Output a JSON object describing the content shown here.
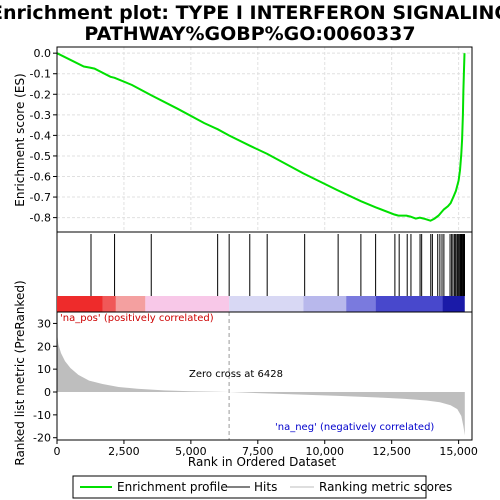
{
  "chart_data": {
    "type": "line",
    "title_line1": "Enrichment plot: TYPE I INTERFERON SIGNALING",
    "title_line2": "PATHWAY%GOBP%GO:0060337",
    "es_panel": {
      "ylabel": "Enrichment score (ES)",
      "ylim": [
        -0.87,
        0.03
      ],
      "yticks": [
        0.0,
        -0.1,
        -0.2,
        -0.3,
        -0.4,
        -0.5,
        -0.6,
        -0.7,
        -0.8
      ],
      "ytick_labels": [
        "0.0",
        "-0.1",
        "-0.2",
        "-0.3",
        "-0.4",
        "-0.5",
        "-0.6",
        "-0.7",
        "-0.8"
      ],
      "grid": true,
      "series": [
        {
          "name": "Enrichment profile",
          "color": "#00e000",
          "x": [
            0,
            1000,
            1230,
            1400,
            2000,
            2150,
            2800,
            3520,
            4500,
            5500,
            6000,
            6420,
            7200,
            7850,
            9200,
            10450,
            11350,
            11900,
            12600,
            12750,
            13050,
            13200,
            13400,
            13550,
            13700,
            13950,
            14100,
            14250,
            14350,
            14450,
            14600,
            14700,
            14800,
            14900,
            15000,
            15050,
            15100,
            15130,
            15160,
            15180,
            15200,
            15220
          ],
          "y": [
            0.0,
            -0.065,
            -0.07,
            -0.075,
            -0.115,
            -0.12,
            -0.155,
            -0.205,
            -0.27,
            -0.34,
            -0.37,
            -0.4,
            -0.45,
            -0.49,
            -0.585,
            -0.665,
            -0.72,
            -0.75,
            -0.785,
            -0.79,
            -0.79,
            -0.795,
            -0.805,
            -0.8,
            -0.805,
            -0.815,
            -0.805,
            -0.79,
            -0.775,
            -0.76,
            -0.745,
            -0.73,
            -0.7,
            -0.67,
            -0.62,
            -0.57,
            -0.49,
            -0.42,
            -0.3,
            -0.18,
            -0.08,
            0.0
          ]
        }
      ]
    },
    "hits_panel": {
      "hit_positions": [
        1270,
        2150,
        3520,
        6000,
        6430,
        7200,
        7850,
        9250,
        10500,
        11350,
        11900,
        12620,
        12780,
        13080,
        13220,
        13560,
        13620,
        13960,
        14020,
        14220,
        14300,
        14380,
        14450,
        14680,
        14740,
        14790,
        14850,
        14890,
        14940,
        14980,
        15020,
        15060,
        15090,
        15120,
        15150,
        15180,
        15200,
        15220
      ]
    },
    "colorbar": {
      "segments": [
        {
          "from": 0,
          "to": 1700,
          "color": "#ee2b2b"
        },
        {
          "from": 1700,
          "to": 2200,
          "color": "#f05858"
        },
        {
          "from": 2200,
          "to": 3300,
          "color": "#f4a0a0"
        },
        {
          "from": 3300,
          "to": 6428,
          "color": "#f8c8e8"
        },
        {
          "from": 6428,
          "to": 9200,
          "color": "#d8d8f4"
        },
        {
          "from": 9200,
          "to": 10800,
          "color": "#b8b8ec"
        },
        {
          "from": 10800,
          "to": 11900,
          "color": "#7a7ade"
        },
        {
          "from": 11900,
          "to": 14400,
          "color": "#4848cc"
        },
        {
          "from": 14400,
          "to": 15230,
          "color": "#1a1aa8"
        }
      ]
    },
    "rank_panel": {
      "ylabel": "Ranked list metric (PreRanked)",
      "ylim": [
        -21,
        35
      ],
      "yticks": [
        30,
        20,
        10,
        0,
        -10,
        -20
      ],
      "ytick_labels": [
        "30",
        "20",
        "10",
        "0",
        "-10",
        "-20"
      ],
      "fill_color": "#bebebe",
      "x": [
        0,
        50,
        150,
        300,
        500,
        800,
        1200,
        1700,
        2300,
        3000,
        4000,
        5000,
        6000,
        6428,
        7500,
        9000,
        10500,
        12000,
        13000,
        13800,
        14300,
        14700,
        14950,
        15100,
        15180,
        15230
      ],
      "y": [
        26,
        21,
        17,
        13.5,
        10.5,
        7.5,
        5,
        3.5,
        2.2,
        1.4,
        0.7,
        0.35,
        0.1,
        0,
        -0.5,
        -1.1,
        -1.7,
        -2.4,
        -3.0,
        -3.7,
        -4.5,
        -5.8,
        -7.5,
        -10.5,
        -15,
        -19
      ]
    },
    "xaxis": {
      "xlabel": "Rank in Ordered Dataset",
      "xlim": [
        0,
        15500
      ],
      "xticks": [
        0,
        2500,
        5000,
        7500,
        10000,
        12500,
        15000
      ],
      "xtick_labels": [
        "0",
        "2,500",
        "5,000",
        "7,500",
        "10,000",
        "12,500",
        "15,000"
      ]
    },
    "annotations": {
      "pos_label": "'na_pos' (positively correlated)",
      "neg_label": "'na_neg' (negatively correlated)",
      "zero_cross": "Zero cross at 6428",
      "zero_cross_x": 6428,
      "pos_color": "#cc0000",
      "neg_color": "#0000cc"
    },
    "legend": {
      "placement": "bottom",
      "items": [
        {
          "label": "Enrichment profile",
          "color": "#00e000"
        },
        {
          "label": "Hits",
          "color": "#000000"
        },
        {
          "label": "Ranking metric scores",
          "color": "#bebebe"
        }
      ]
    }
  }
}
